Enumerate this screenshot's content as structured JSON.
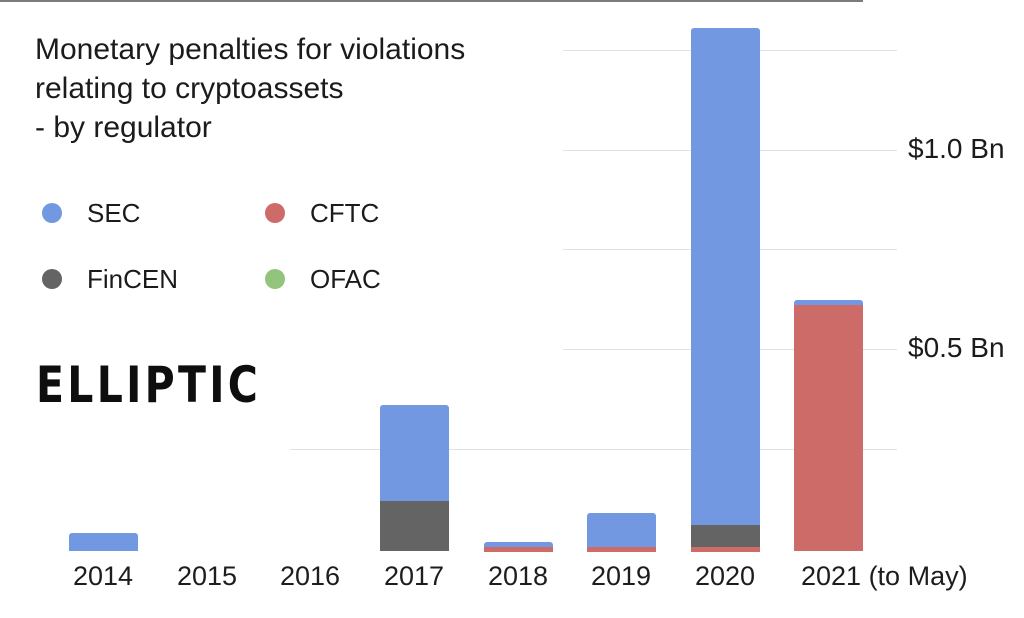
{
  "title": {
    "lines": [
      "Monetary penalties for violations",
      "relating to cryptoassets",
      "- by regulator"
    ]
  },
  "legend": {
    "items": [
      {
        "label": "SEC",
        "color": "#7398e2"
      },
      {
        "label": "CFTC",
        "color": "#cd6b68"
      },
      {
        "label": "FinCEN",
        "color": "#646464"
      },
      {
        "label": "OFAC",
        "color": "#93c47d"
      }
    ]
  },
  "logo_text": "ELLIPTIC",
  "y_axis": {
    "labels": [
      {
        "text": "$1.0 Bn",
        "value": 1.0
      },
      {
        "text": "$0.5 Bn",
        "value": 0.5
      }
    ]
  },
  "chart_data": {
    "type": "bar",
    "stacked": true,
    "title": "Monetary penalties for violations relating to cryptoassets - by regulator",
    "unit": "USD billions",
    "categories": [
      "2014",
      "2015",
      "2016",
      "2017",
      "2018",
      "2019",
      "2020",
      "2021 (to May)"
    ],
    "series": [
      {
        "name": "CFTC",
        "color": "#cd6b68",
        "values": [
          0,
          0,
          0,
          0,
          0.005,
          0.005,
          0.005,
          0.61
        ]
      },
      {
        "name": "FinCEN",
        "color": "#646464",
        "values": [
          0,
          0,
          0,
          0.12,
          0,
          0,
          0.055,
          0
        ]
      },
      {
        "name": "SEC",
        "color": "#7398e2",
        "values": [
          0.039,
          0,
          0,
          0.24,
          0.012,
          0.085,
          1.245,
          0.013
        ]
      },
      {
        "name": "OFAC",
        "color": "#93c47d",
        "values": [
          0,
          0,
          0,
          0,
          0,
          0,
          0,
          0
        ]
      }
    ],
    "ylim": [
      0,
      1.3
    ],
    "gridline_values": [
      0.25,
      0.5,
      0.75,
      1.0,
      1.25
    ],
    "labeled_ticks": [
      0.5,
      1.0
    ],
    "legend_position": "top-left",
    "grid": true
  }
}
